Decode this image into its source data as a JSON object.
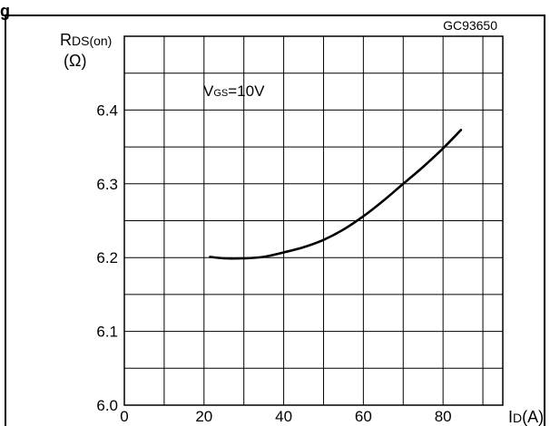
{
  "page": {
    "title_fragment": "g"
  },
  "chart_data": {
    "type": "line",
    "figure_code": "GC93650",
    "ylabel_main": "R",
    "ylabel_sub": "DS(on)",
    "yunit": "(Ω)",
    "xlabel_main": "I",
    "xlabel_sub": "D",
    "xunit": "(A)",
    "annotation_main": "V",
    "annotation_sub": "GS",
    "annotation_value": "=10V",
    "xlim": [
      0,
      95
    ],
    "ylim": [
      6.0,
      6.5
    ],
    "x_ticks": [
      0,
      20,
      40,
      60,
      80
    ],
    "x_tick_labels": [
      "0",
      "20",
      "40",
      "60",
      "80"
    ],
    "y_ticks": [
      6.0,
      6.1,
      6.2,
      6.3,
      6.4
    ],
    "y_tick_labels": [
      "6.0",
      "6.1",
      "6.2",
      "6.3",
      "6.4"
    ],
    "x_grid_step": 10,
    "y_grid_step": 0.05,
    "grid": true,
    "series": [
      {
        "x": [
          21.5,
          25,
          30,
          35,
          40,
          45,
          50,
          55,
          60,
          65,
          70,
          75,
          80,
          84.5
        ],
        "y": [
          6.201,
          6.199,
          6.199,
          6.201,
          6.207,
          6.214,
          6.224,
          6.238,
          6.256,
          6.277,
          6.3,
          6.323,
          6.348,
          6.373
        ]
      }
    ]
  }
}
